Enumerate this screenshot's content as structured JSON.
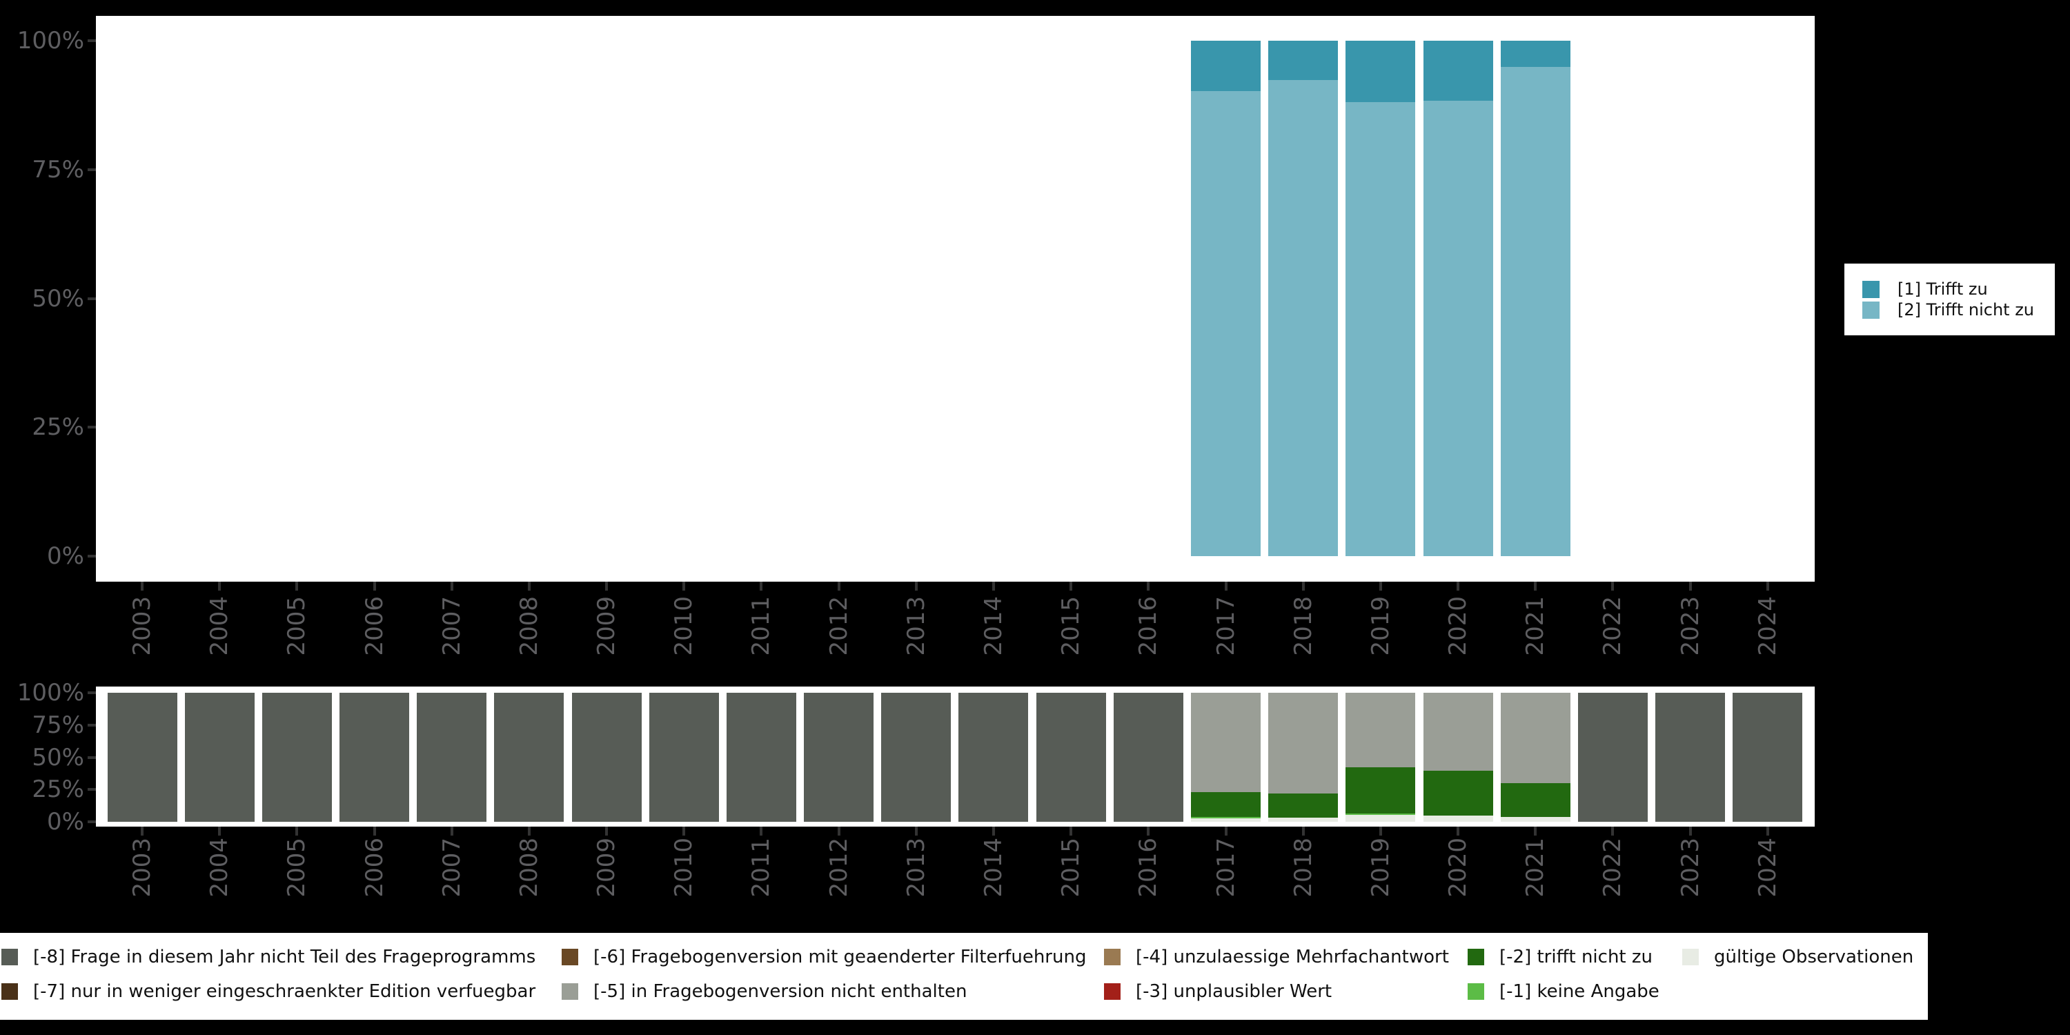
{
  "background": "#000000",
  "plot_background": "#ffffff",
  "axis": {
    "tick_color": "#333333",
    "tick_label_color": "#5e5e61"
  },
  "chart_data": [
    {
      "id": "answer-distribution",
      "type": "bar",
      "stacked": true,
      "unit": "percent",
      "ylim": [
        0,
        100
      ],
      "grid": false,
      "legend_position": "right",
      "x_tick_rotation": 90,
      "y_tick_labels": [
        "100%",
        "75%",
        "50%",
        "25%",
        "0%"
      ],
      "categories": [
        "2003",
        "2004",
        "2005",
        "2006",
        "2007",
        "2008",
        "2009",
        "2010",
        "2011",
        "2012",
        "2013",
        "2014",
        "2015",
        "2016",
        "2017",
        "2018",
        "2019",
        "2020",
        "2021",
        "2022",
        "2023",
        "2024"
      ],
      "series": [
        {
          "label": "[1] Trifft zu",
          "color": "#3996AC",
          "values": [
            null,
            null,
            null,
            null,
            null,
            null,
            null,
            null,
            null,
            null,
            null,
            null,
            null,
            null,
            9.8,
            7.6,
            11.9,
            11.7,
            5.1,
            null,
            null,
            null
          ]
        },
        {
          "label": "[2] Trifft nicht zu",
          "color": "#77B6C5",
          "values": [
            null,
            null,
            null,
            null,
            null,
            null,
            null,
            null,
            null,
            null,
            null,
            null,
            null,
            null,
            90.2,
            92.4,
            88.1,
            88.3,
            94.9,
            null,
            null,
            null
          ]
        }
      ]
    },
    {
      "id": "missing-distribution",
      "type": "bar",
      "stacked": true,
      "unit": "percent",
      "ylim": [
        0,
        100
      ],
      "grid": false,
      "legend_position": "bottom",
      "x_tick_rotation": 90,
      "y_tick_labels": [
        "100%",
        "75%",
        "50%",
        "25%",
        "0%"
      ],
      "categories": [
        "2003",
        "2004",
        "2005",
        "2006",
        "2007",
        "2008",
        "2009",
        "2010",
        "2011",
        "2012",
        "2013",
        "2014",
        "2015",
        "2016",
        "2017",
        "2018",
        "2019",
        "2020",
        "2021",
        "2022",
        "2023",
        "2024"
      ],
      "series": [
        {
          "label": "gültige Observationen",
          "color": "#E8ECE4",
          "values": [
            0,
            0,
            0,
            0,
            0,
            0,
            0,
            0,
            0,
            0,
            0,
            0,
            0,
            0,
            2.7,
            3.0,
            5.3,
            4.8,
            3.9,
            0,
            0,
            0
          ]
        },
        {
          "label": "[-1] keine Angabe",
          "color": "#5CBC46",
          "values": [
            0,
            0,
            0,
            0,
            0,
            0,
            0,
            0,
            0,
            0,
            0,
            0,
            0,
            0,
            1.2,
            0,
            1.2,
            0,
            0,
            0,
            0,
            0
          ]
        },
        {
          "label": "[-2] trifft nicht zu",
          "color": "#226910",
          "values": [
            0,
            0,
            0,
            0,
            0,
            0,
            0,
            0,
            0,
            0,
            0,
            0,
            0,
            0,
            19.2,
            18.7,
            35.8,
            34.7,
            26.0,
            0,
            0,
            0
          ]
        },
        {
          "label": "[-5] in Fragebogenversion nicht enthalten",
          "color": "#9A9E96",
          "values": [
            0,
            0,
            0,
            0,
            0,
            0,
            0,
            0,
            0,
            0,
            0,
            0,
            0,
            0,
            76.9,
            78.3,
            57.7,
            60.5,
            70.1,
            0,
            0,
            0
          ]
        },
        {
          "label": "[-8] Frage in diesem Jahr nicht Teil des Frageprogramms",
          "color": "#575C56",
          "values": [
            100,
            100,
            100,
            100,
            100,
            100,
            100,
            100,
            100,
            100,
            100,
            100,
            100,
            100,
            0,
            0,
            0,
            0,
            0,
            100,
            100,
            100
          ]
        }
      ]
    }
  ],
  "top_legend": {
    "items": [
      {
        "label": "[1] Trifft zu",
        "color": "#3996AC"
      },
      {
        "label": "[2] Trifft nicht zu",
        "color": "#77B6C5"
      }
    ]
  },
  "missing_legend": {
    "items": [
      {
        "label": "[-8] Frage in diesem Jahr nicht Teil des Frageprogramms",
        "color": "#575C56"
      },
      {
        "label": "[-7] nur in weniger eingeschraenkter Edition verfuegbar",
        "color": "#4A3118"
      },
      {
        "label": "[-6] Fragebogenversion mit geaenderter Filterfuehrung",
        "color": "#694825"
      },
      {
        "label": "[-5] in Fragebogenversion nicht enthalten",
        "color": "#9A9E96"
      },
      {
        "label": "[-4] unzulaessige Mehrfachantwort",
        "color": "#9A7A52"
      },
      {
        "label": "[-3] unplausibler Wert",
        "color": "#A32019"
      },
      {
        "label": "[-2] trifft nicht zu",
        "color": "#226910"
      },
      {
        "label": "[-1] keine Angabe",
        "color": "#5CBC46"
      },
      {
        "label": "gültige Observationen",
        "color": "#E8ECE4"
      }
    ]
  }
}
